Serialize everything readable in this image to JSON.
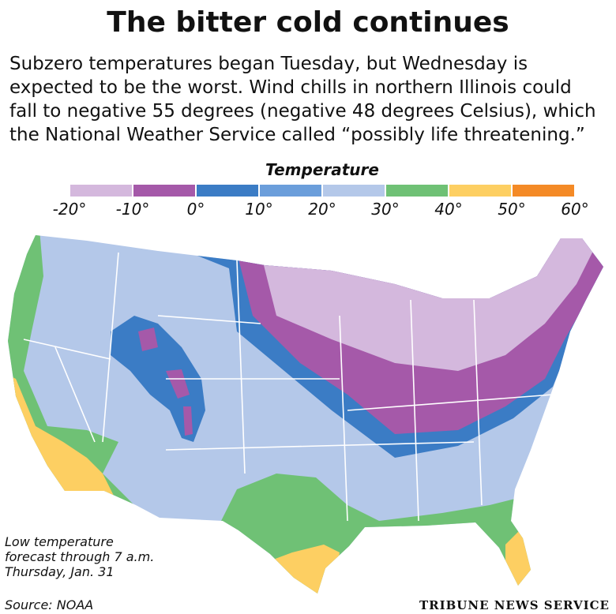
{
  "title": "The bitter cold continues",
  "subtitle": {
    "lines": [
      "Subzero temperatures began Tuesday, but Wednesday is",
      "expected to be the worst. Wind chills in northern Illinois could",
      "fall to negative 55 degrees (negative 48 degrees Celsius), which",
      "the National Weather Service called “possibly life threatening.”"
    ]
  },
  "legend": {
    "title": "Temperature",
    "colors": [
      "#d4b8dd",
      "#a559a9",
      "#3b7cc5",
      "#6b9edb",
      "#b4c8e9",
      "#6fc175",
      "#fdcf62",
      "#f48a26"
    ],
    "ticks": [
      {
        "value": -20,
        "label": "-20°"
      },
      {
        "value": -10,
        "label": "-10°"
      },
      {
        "value": 0,
        "label": "0°"
      },
      {
        "value": 10,
        "label": "10°"
      },
      {
        "value": 20,
        "label": "20°"
      },
      {
        "value": 30,
        "label": "30°"
      },
      {
        "value": 40,
        "label": "40°"
      },
      {
        "value": 50,
        "label": "50°"
      },
      {
        "value": 60,
        "label": "60°"
      }
    ]
  },
  "footnote": {
    "lines": [
      "Low temperature",
      "forecast through 7 a.m.",
      "Thursday, Jan. 31"
    ]
  },
  "source": "Source: NOAA",
  "credit": "TRIBUNE NEWS SERVICE"
}
